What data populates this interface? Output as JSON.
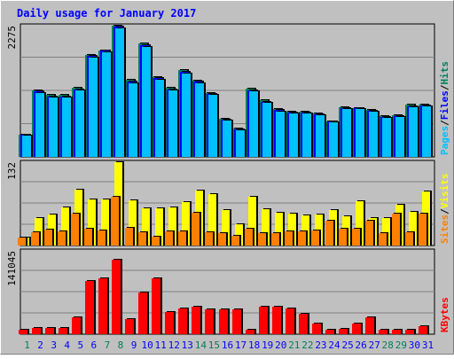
{
  "title": "Daily usage for January 2017",
  "colors": {
    "background": "#c0c0c0",
    "plot_bg": "#c0c0c0",
    "title": "#0000ff",
    "hits": "#00805c",
    "files": "#0000ff",
    "pages": "#00c0ff",
    "visits": "#ffff00",
    "sites": "#ff8000",
    "kbytes": "#ff0000",
    "weekend_day": "#00805c",
    "weekday": "#0000ff"
  },
  "chart_data": [
    {
      "type": "bar",
      "panel": "hits-files-pages",
      "categories": [
        "1",
        "2",
        "3",
        "4",
        "5",
        "6",
        "7",
        "8",
        "9",
        "10",
        "11",
        "12",
        "13",
        "14",
        "15",
        "16",
        "17",
        "18",
        "19",
        "20",
        "21",
        "22",
        "23",
        "24",
        "25",
        "26",
        "27",
        "28",
        "29",
        "30",
        "31"
      ],
      "weekend_days": [
        "1",
        "7",
        "8",
        "14",
        "15",
        "21",
        "22",
        "28",
        "29"
      ],
      "ylim": [
        0,
        2275
      ],
      "ytick_label": "2275",
      "legend": [
        "Pages",
        "/",
        "Files",
        "/",
        "Hits"
      ],
      "series": [
        {
          "name": "Hits",
          "values": [
            390,
            1150,
            1070,
            1070,
            1200,
            1770,
            1850,
            2275,
            1330,
            1960,
            1390,
            1200,
            1500,
            1320,
            1110,
            660,
            490,
            1180,
            990,
            830,
            790,
            790,
            760,
            620,
            860,
            850,
            820,
            700,
            720,
            900,
            910
          ]
        },
        {
          "name": "Files",
          "values": [
            380,
            1130,
            1050,
            1050,
            1170,
            1750,
            1840,
            2265,
            1300,
            1940,
            1370,
            1170,
            1470,
            1300,
            1090,
            640,
            470,
            1160,
            960,
            810,
            770,
            770,
            740,
            610,
            840,
            840,
            800,
            690,
            710,
            880,
            890
          ]
        },
        {
          "name": "Pages",
          "values": [
            370,
            1100,
            1030,
            1030,
            1150,
            1720,
            1810,
            2230,
            1280,
            1910,
            1340,
            1150,
            1440,
            1280,
            1070,
            630,
            460,
            1140,
            940,
            790,
            750,
            750,
            720,
            600,
            830,
            830,
            780,
            670,
            690,
            860,
            870
          ]
        }
      ]
    },
    {
      "type": "bar",
      "panel": "visits-sites",
      "categories": [
        "1",
        "2",
        "3",
        "4",
        "5",
        "6",
        "7",
        "8",
        "9",
        "10",
        "11",
        "12",
        "13",
        "14",
        "15",
        "16",
        "17",
        "18",
        "19",
        "20",
        "21",
        "22",
        "23",
        "24",
        "25",
        "26",
        "27",
        "28",
        "29",
        "30",
        "31"
      ],
      "ylim": [
        0,
        132
      ],
      "ytick_label": "132",
      "legend": [
        "Sites",
        "/",
        "Visits"
      ],
      "series": [
        {
          "name": "Visits",
          "values": [
            13,
            43,
            49,
            60,
            88,
            73,
            73,
            132,
            72,
            59,
            59,
            60,
            69,
            87,
            81,
            56,
            33,
            77,
            58,
            52,
            51,
            48,
            49,
            56,
            46,
            70,
            44,
            43,
            65,
            53,
            86
          ]
        },
        {
          "name": "Sites",
          "values": [
            12,
            21,
            25,
            23,
            51,
            26,
            24,
            77,
            28,
            21,
            14,
            22,
            22,
            52,
            21,
            20,
            16,
            27,
            20,
            20,
            23,
            23,
            24,
            40,
            26,
            26,
            40,
            20,
            51,
            21,
            50
          ]
        }
      ]
    },
    {
      "type": "bar",
      "panel": "kbytes",
      "categories": [
        "1",
        "2",
        "3",
        "4",
        "5",
        "6",
        "7",
        "8",
        "9",
        "10",
        "11",
        "12",
        "13",
        "14",
        "15",
        "16",
        "17",
        "18",
        "19",
        "20",
        "21",
        "22",
        "23",
        "24",
        "25",
        "26",
        "27",
        "28",
        "29",
        "30",
        "31"
      ],
      "ylim": [
        0,
        141045
      ],
      "ytick_label": "141045",
      "legend": [
        "KBytes"
      ],
      "series": [
        {
          "name": "KBytes",
          "values": [
            7000,
            10000,
            11000,
            11000,
            29000,
            90000,
            95000,
            126000,
            25000,
            70000,
            94000,
            37000,
            43000,
            46000,
            42000,
            42000,
            42000,
            7000,
            46000,
            46000,
            44000,
            35000,
            18000,
            8000,
            9000,
            18000,
            28000,
            8000,
            8000,
            8000,
            14000
          ]
        }
      ]
    }
  ]
}
